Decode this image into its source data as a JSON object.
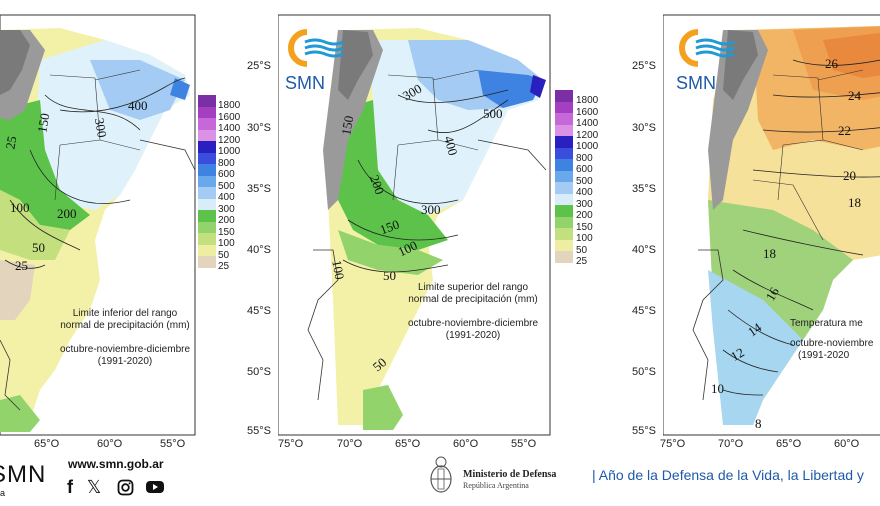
{
  "maps": [
    {
      "lat_labels": [],
      "lon_labels": [
        "65°O",
        "60°O",
        "55°O"
      ],
      "caption_lines": [
        "Limite inferior del rango",
        "normal de precipitación (mm)",
        "",
        "octubre-noviembre-diciembre",
        "(1991-2020)"
      ],
      "contours": [
        "400",
        "300",
        "150",
        "25",
        "100",
        "200",
        "50",
        "25"
      ]
    },
    {
      "lat_labels": [
        "25°S",
        "30°S",
        "35°S",
        "40°S",
        "45°S",
        "50°S",
        "55°S"
      ],
      "lon_labels": [
        "75°O",
        "70°O",
        "65°O",
        "60°O",
        "55°O"
      ],
      "caption_lines": [
        "Limite superior del rango",
        "normal de precipitación (mm)",
        "",
        "octubre-noviembre-diciembre",
        "(1991-2020)"
      ],
      "contours": [
        "300",
        "500",
        "400",
        "150",
        "200",
        "300",
        "150",
        "100",
        "100",
        "50",
        "50"
      ]
    },
    {
      "lat_labels": [
        "25°S",
        "30°S",
        "35°S",
        "40°S",
        "45°S",
        "50°S",
        "55°S"
      ],
      "lon_labels": [
        "75°O",
        "70°O",
        "65°O",
        "60°O"
      ],
      "caption_lines": [
        "Temperatura me",
        "",
        "octubre-noviembre",
        "(1991-2020"
      ],
      "contours": [
        "26",
        "24",
        "22",
        "20",
        "18",
        "18",
        "16",
        "14",
        "12",
        "10",
        "8"
      ]
    }
  ],
  "precip_legend": {
    "labels": [
      "1800",
      "1600",
      "1400",
      "1200",
      "1000",
      "800",
      "600",
      "500",
      "400",
      "300",
      "200",
      "150",
      "100",
      "50",
      "25"
    ],
    "colors": [
      "#7b2fa5",
      "#a43fc2",
      "#c768d8",
      "#db92e4",
      "#2a1fbf",
      "#3b4ddd",
      "#3f83e2",
      "#6aa8ec",
      "#a3cbf3",
      "#d8edf9",
      "#5cc24a",
      "#93d36b",
      "#c4e07e",
      "#eeeea2",
      "#e3d4bd"
    ]
  },
  "logo_text": "SMN",
  "footer": {
    "smn_partial": "SMN",
    "smn_small": "a",
    "website": "www.smn.gob.ar",
    "ministry": "Ministerio de Defensa",
    "republic": "República Argentina",
    "motto": "| Año de la Defensa de la Vida, la Libertad y",
    "social": [
      "facebook-icon",
      "x-icon",
      "instagram-icon",
      "youtube-icon"
    ]
  },
  "colors": {
    "topography": "#9a9a9a",
    "precip_low": "#f3f1a8",
    "precip_green": "#8fd26b",
    "precip_lightblue": "#dff2fb",
    "precip_blue": "#6ab0ee",
    "temp_warm": "#f2b566",
    "temp_mid": "#f6e19a",
    "temp_green": "#9fd27b",
    "temp_cool": "#a6d6f0",
    "smn_blue": "#1f5aa8",
    "smn_orange": "#f4a21d"
  }
}
